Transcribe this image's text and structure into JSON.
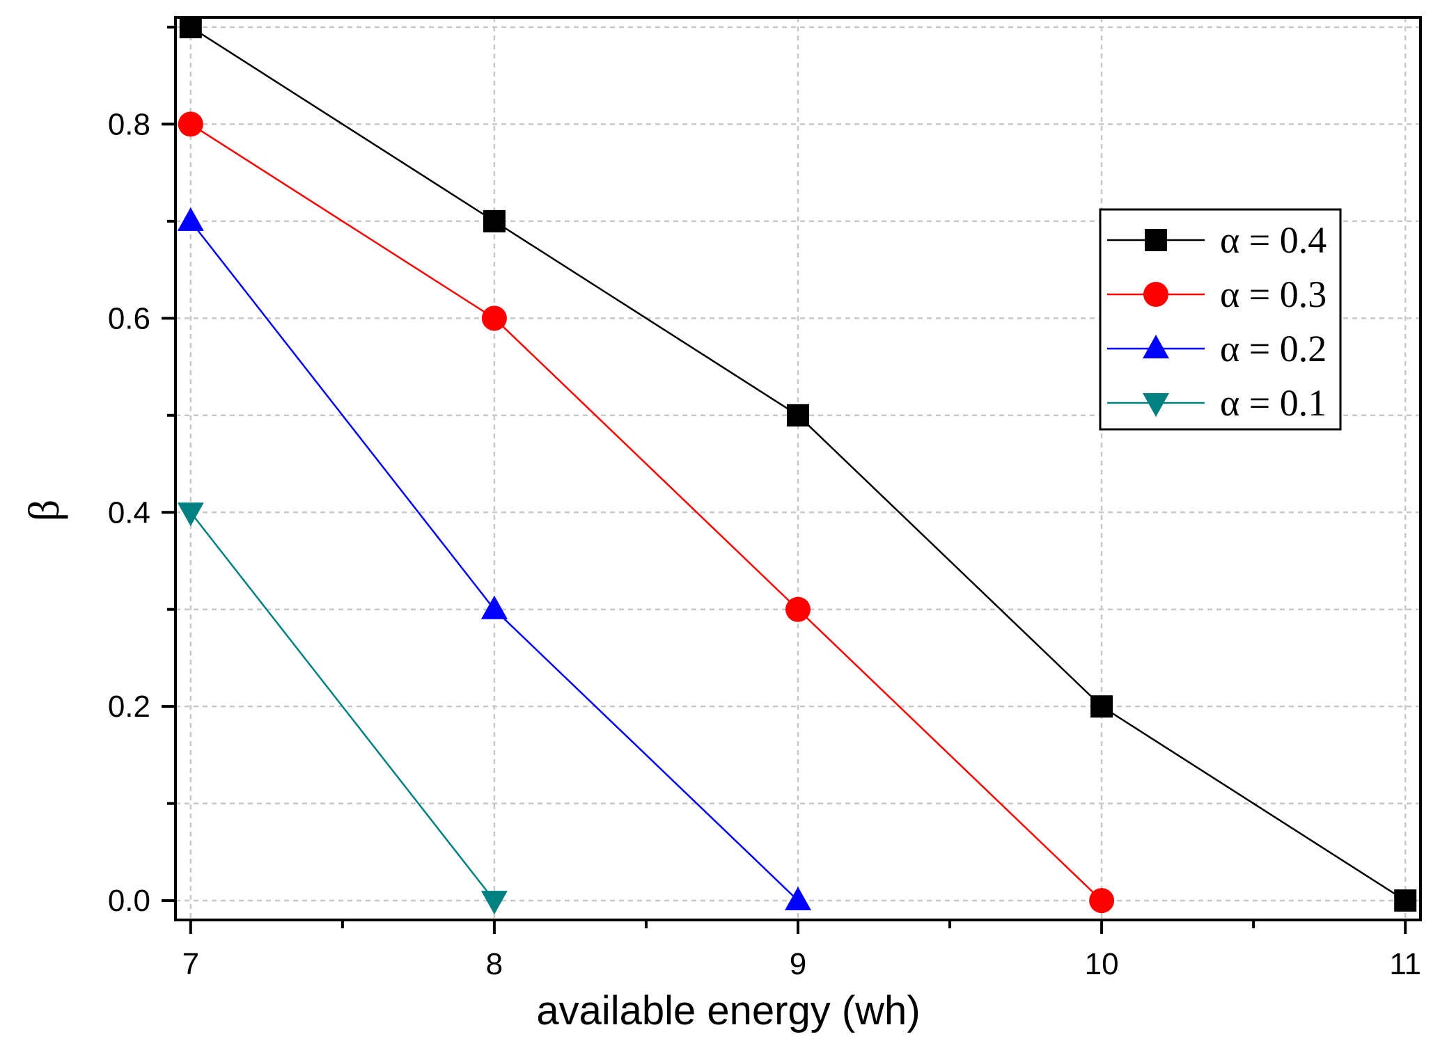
{
  "chart_data": {
    "type": "line",
    "title": "",
    "xlabel": "available energy (wh)",
    "ylabel": "β",
    "xlim": [
      6.95,
      11.05
    ],
    "ylim": [
      -0.02,
      0.91
    ],
    "xticks": [
      7,
      8,
      9,
      10,
      11
    ],
    "xtick_labels": [
      "7",
      "8",
      "9",
      "10",
      "11"
    ],
    "yticks": [
      0.0,
      0.2,
      0.4,
      0.6,
      0.8
    ],
    "ytick_labels": [
      "0.0",
      "0.2",
      "0.4",
      "0.6",
      "0.8"
    ],
    "grid": true,
    "legend_position": "upper-right",
    "series": [
      {
        "name": "α = 0.4",
        "color": "#000000",
        "marker": "square",
        "x": [
          7,
          8,
          9,
          10,
          11
        ],
        "values": [
          0.9,
          0.7,
          0.5,
          0.2,
          0.0
        ]
      },
      {
        "name": "α = 0.3",
        "color": "#ff0000",
        "marker": "circle",
        "x": [
          7,
          8,
          9,
          10
        ],
        "values": [
          0.8,
          0.6,
          0.3,
          0.0
        ]
      },
      {
        "name": "α = 0.2",
        "color": "#0000ff",
        "marker": "triangle-up",
        "x": [
          7,
          8,
          9
        ],
        "values": [
          0.7,
          0.3,
          0.0
        ]
      },
      {
        "name": "α = 0.1",
        "color": "#008080",
        "marker": "triangle-down",
        "x": [
          7,
          8
        ],
        "values": [
          0.4,
          0.0
        ]
      }
    ]
  }
}
